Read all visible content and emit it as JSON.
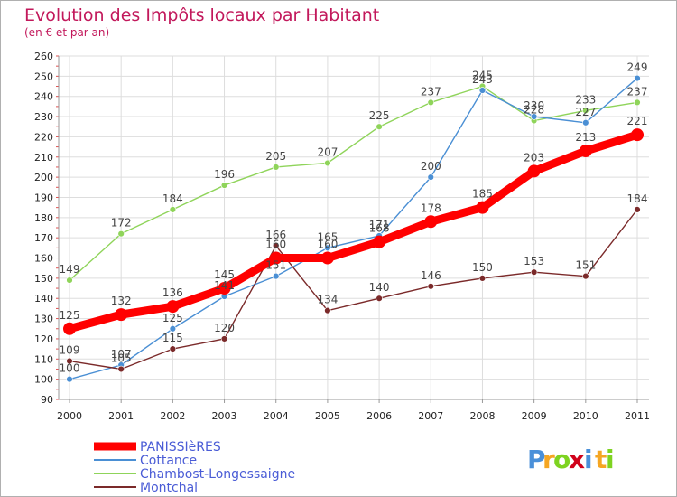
{
  "chart_data": {
    "type": "line",
    "title": "Evolution des Impôts locaux par Habitant",
    "subtitle": "(en € et par an)",
    "xlabel": "",
    "ylabel": "",
    "ylim": [
      90,
      260
    ],
    "yticks": [
      90,
      100,
      110,
      120,
      130,
      140,
      150,
      160,
      170,
      180,
      190,
      200,
      210,
      220,
      230,
      240,
      250,
      260
    ],
    "categories": [
      "2000",
      "2001",
      "2002",
      "2003",
      "2004",
      "2005",
      "2006",
      "2007",
      "2008",
      "2009",
      "2010",
      "2011"
    ],
    "grid": true,
    "legend_position": "bottom-left",
    "series": [
      {
        "name": "PANISSIèRES",
        "color": "#ff0000",
        "values": [
          125,
          132,
          136,
          145,
          160,
          160,
          168,
          178,
          185,
          203,
          213,
          221
        ]
      },
      {
        "name": "Cottance",
        "color": "#4a8fd4",
        "values": [
          100,
          107,
          125,
          141,
          151,
          165,
          171,
          200,
          243,
          230,
          227,
          249
        ]
      },
      {
        "name": "Chambost-Longessaigne",
        "color": "#8fd45a",
        "values": [
          149,
          172,
          184,
          196,
          205,
          207,
          225,
          237,
          245,
          228,
          233,
          237
        ]
      },
      {
        "name": "Montchal",
        "color": "#7b2a2a",
        "values": [
          109,
          105,
          115,
          120,
          166,
          134,
          140,
          146,
          150,
          153,
          151,
          184
        ]
      }
    ]
  },
  "logo": {
    "letters": [
      "P",
      "r",
      "o",
      "x",
      "i",
      "t",
      "i"
    ],
    "colors": [
      "#4a90d9",
      "#f5a623",
      "#7ed321",
      "#d0021b",
      "#4a90d9",
      "#f5a623",
      "#7ed321"
    ]
  }
}
